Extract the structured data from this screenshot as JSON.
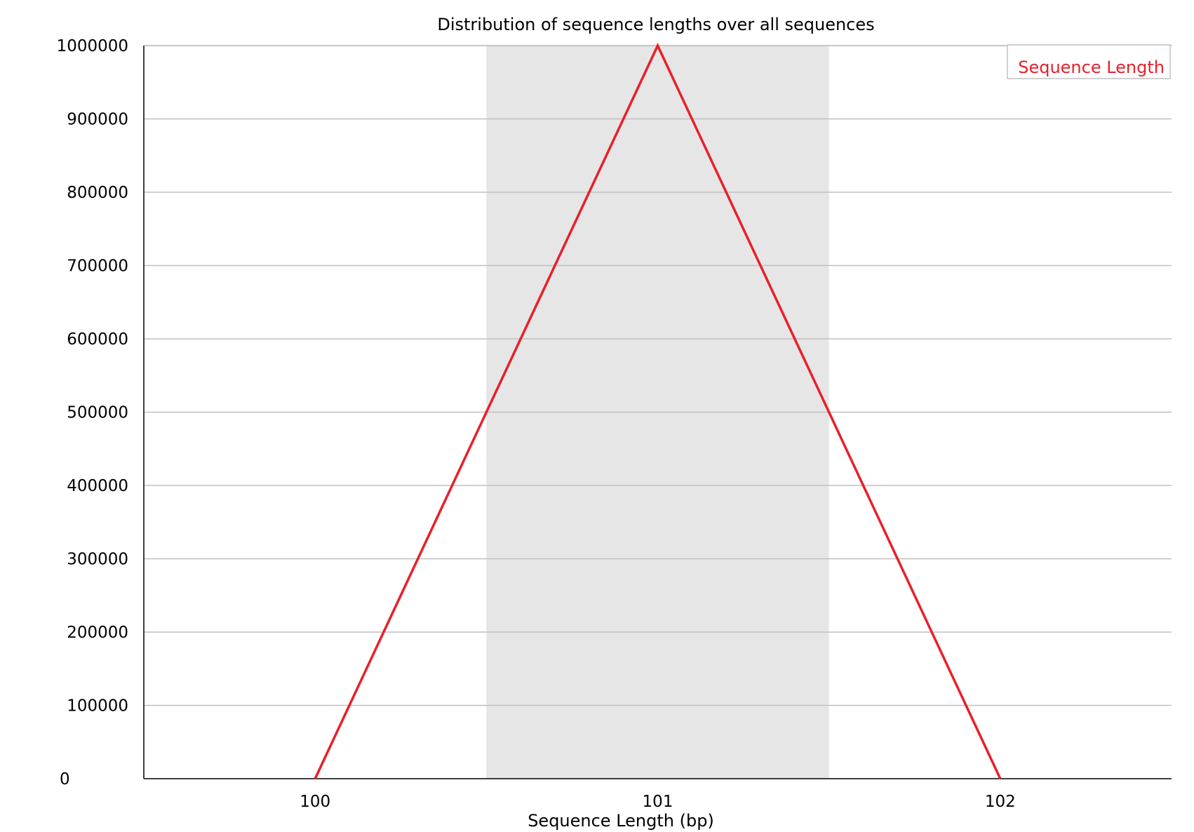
{
  "chart_data": {
    "type": "line",
    "title": "Distribution of sequence lengths over all sequences",
    "xlabel": "Sequence Length (bp)",
    "ylabel": "",
    "x": [
      100,
      101,
      102
    ],
    "x_tick_labels": [
      "100",
      "101",
      "102"
    ],
    "series": [
      {
        "name": "Sequence Length",
        "values": [
          0,
          1000000,
          0
        ],
        "color": "#e8202a"
      }
    ],
    "ylim": [
      0,
      1000000
    ],
    "y_ticks": [
      0,
      100000,
      200000,
      300000,
      400000,
      500000,
      600000,
      700000,
      800000,
      900000,
      1000000
    ],
    "y_tick_labels": [
      "0",
      "100000",
      "200000",
      "300000",
      "400000",
      "500000",
      "600000",
      "700000",
      "800000",
      "900000",
      "1000000"
    ],
    "grid": "horizontal",
    "alternating_band_color": "#e6e6e6",
    "gridline_color": "#c0c0c0",
    "legend_position": "top-right"
  }
}
